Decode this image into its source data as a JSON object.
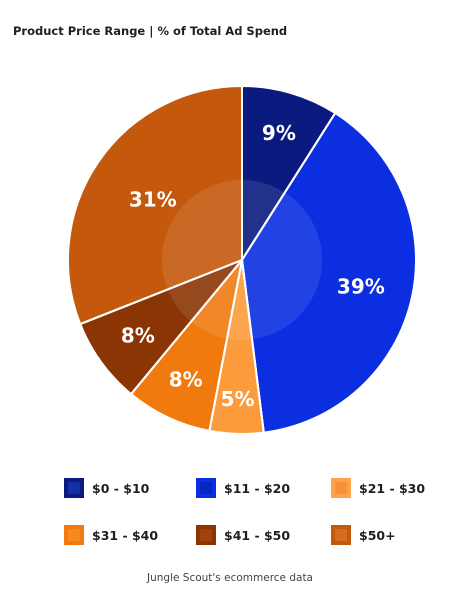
{
  "header": {
    "title": "Product Price Range",
    "subtitle": "| % of Total Ad Spend"
  },
  "chart_data": {
    "type": "pie",
    "title": "Product Price Range | % of Total Ad Spend",
    "categories": [
      "$0 - $10",
      "$11 - $20",
      "$21 - $30",
      "$31 - $40",
      "$41 - $50",
      "$50+"
    ],
    "values": [
      9,
      39,
      5,
      8,
      8,
      31
    ],
    "labels": [
      "9%",
      "39%",
      "5%",
      "8%",
      "8%",
      "31%"
    ],
    "colors": [
      "#0a1a7e",
      "#0a2ee0",
      "#fb9b3c",
      "#f07a0e",
      "#8b3504",
      "#c4580d"
    ],
    "legend_position": "bottom"
  },
  "legend": [
    {
      "label": "$0 - $10",
      "color": "#0a1a7e",
      "inner": "#152fa6"
    },
    {
      "label": "$11 - $20",
      "color": "#0a2ee0",
      "inner": "#0825c1"
    },
    {
      "label": "$21 - $30",
      "color": "#fca24a",
      "inner": "#f79137"
    },
    {
      "label": "$31 - $40",
      "color": "#f07a0e",
      "inner": "#f58a22"
    },
    {
      "label": "$41 - $50",
      "color": "#8b3504",
      "inner": "#a2420a"
    },
    {
      "label": "$50+",
      "color": "#c4580d",
      "inner": "#d66c1d"
    }
  ],
  "footer": {
    "source": "Jungle Scout's ecommerce data"
  }
}
